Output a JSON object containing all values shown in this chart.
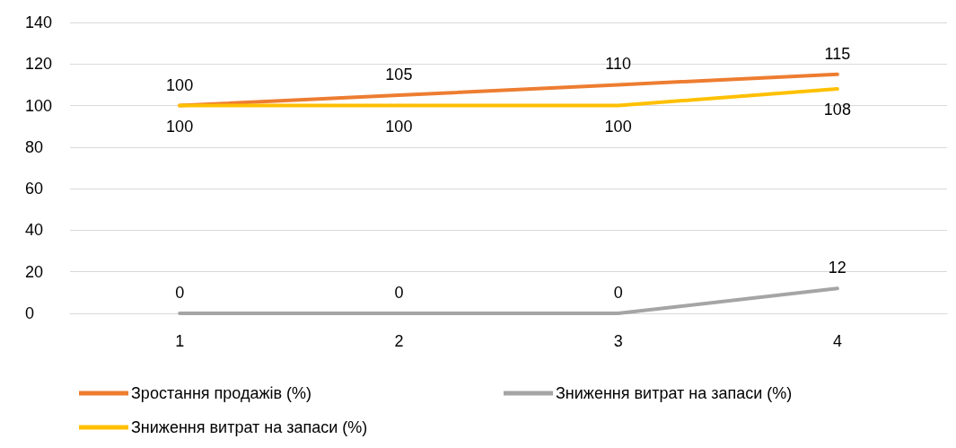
{
  "chart_data": {
    "type": "line",
    "categories": [
      "1",
      "2",
      "3",
      "4"
    ],
    "series": [
      {
        "name": "Зростання продажів (%)",
        "color": "#ed7d31",
        "values": [
          100,
          105,
          110,
          115
        ]
      },
      {
        "name": "Зниження витрат на запаси (%)",
        "color": "#a5a5a5",
        "values": [
          0,
          0,
          0,
          12
        ]
      },
      {
        "name": "Зниження витрат на запаси (%)",
        "color": "#ffc000",
        "values": [
          100,
          100,
          100,
          108
        ]
      }
    ],
    "ylim": [
      0,
      140
    ],
    "yticks": [
      0,
      20,
      40,
      60,
      80,
      100,
      120,
      140
    ],
    "grid": "y",
    "legend": "bottom",
    "data_labels": true,
    "marker": "none",
    "line_style": "solid"
  }
}
